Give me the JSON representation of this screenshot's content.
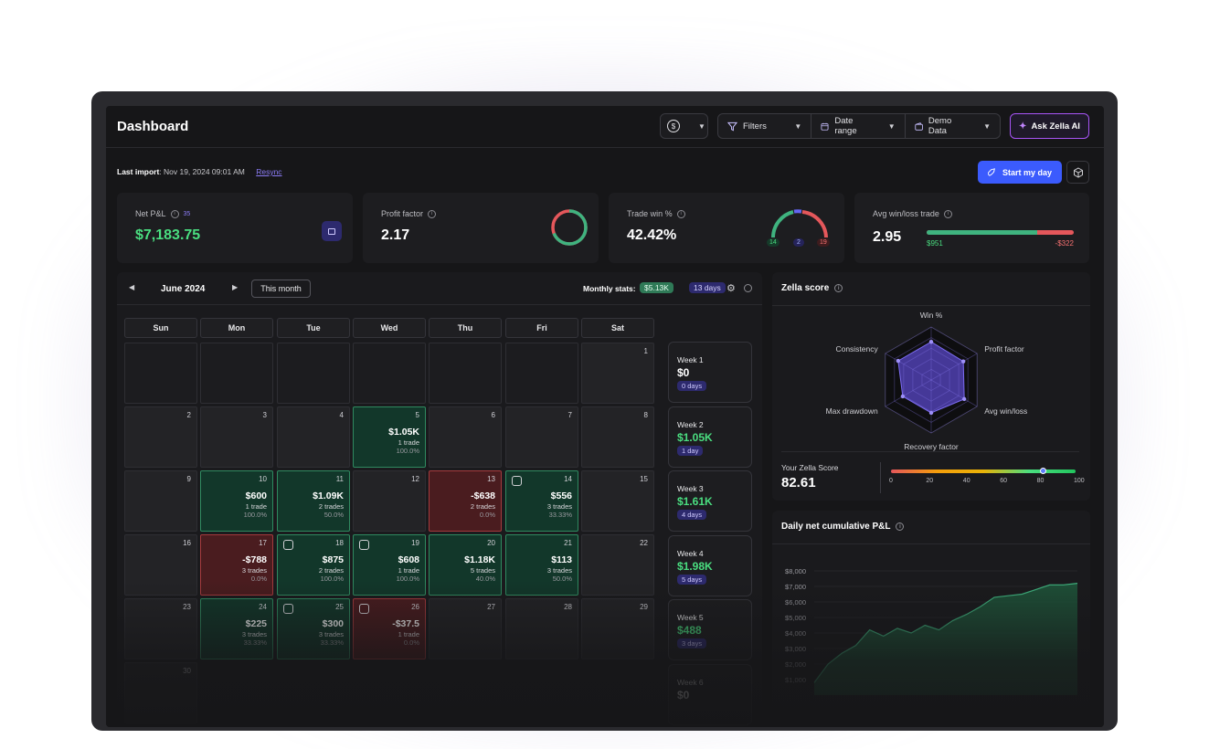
{
  "header": {
    "title": "Dashboard",
    "currency_icon": "dollar-icon",
    "filters_label": "Filters",
    "date_range_label": "Date range",
    "account_label": "Demo Data",
    "ai_label": "Ask Zella AI"
  },
  "import": {
    "label": "Last import",
    "value": ": Nov 19, 2024 09:01 AM",
    "resync": "Resync"
  },
  "actions": {
    "start_label": "Start my day"
  },
  "stats": {
    "net_pnl": {
      "label": "Net P&L",
      "count": "35",
      "value": "$7,183.75"
    },
    "profit_factor": {
      "label": "Profit factor",
      "value": "2.17"
    },
    "trade_win": {
      "label": "Trade win %",
      "value": "42.42%",
      "wins": "14",
      "breakeven": "2",
      "losses": "19"
    },
    "avg_win_loss": {
      "label": "Avg win/loss trade",
      "value": "2.95",
      "avg_win": "$951",
      "avg_loss": "-$322",
      "win_fraction": 0.75
    }
  },
  "calendar": {
    "month": "June 2024",
    "this_month": "This month",
    "monthly_stats_label": "Monthly stats:",
    "monthly_pnl": "$5.13K",
    "monthly_days": "13 days",
    "weekdays": [
      "Sun",
      "Mon",
      "Tue",
      "Wed",
      "Thu",
      "Fri",
      "Sat"
    ],
    "days": [
      {
        "n": "1",
        "r": 0,
        "c": 6
      },
      {
        "n": "2",
        "r": 1,
        "c": 0
      },
      {
        "n": "3",
        "r": 1,
        "c": 1
      },
      {
        "n": "4",
        "r": 1,
        "c": 2
      },
      {
        "n": "5",
        "r": 1,
        "c": 3,
        "pnl": "$1.05K",
        "trades": "1 trade",
        "pct": "100.0%",
        "type": "green"
      },
      {
        "n": "6",
        "r": 1,
        "c": 4
      },
      {
        "n": "7",
        "r": 1,
        "c": 5
      },
      {
        "n": "8",
        "r": 1,
        "c": 6
      },
      {
        "n": "9",
        "r": 2,
        "c": 0
      },
      {
        "n": "10",
        "r": 2,
        "c": 1,
        "pnl": "$600",
        "trades": "1 trade",
        "pct": "100.0%",
        "type": "green"
      },
      {
        "n": "11",
        "r": 2,
        "c": 2,
        "pnl": "$1.09K",
        "trades": "2 trades",
        "pct": "50.0%",
        "type": "green"
      },
      {
        "n": "12",
        "r": 2,
        "c": 3
      },
      {
        "n": "13",
        "r": 2,
        "c": 4,
        "pnl": "-$638",
        "trades": "2 trades",
        "pct": "0.0%",
        "type": "red"
      },
      {
        "n": "14",
        "r": 2,
        "c": 5,
        "pnl": "$556",
        "trades": "3 trades",
        "pct": "33.33%",
        "type": "green",
        "note": true
      },
      {
        "n": "15",
        "r": 2,
        "c": 6
      },
      {
        "n": "16",
        "r": 3,
        "c": 0
      },
      {
        "n": "17",
        "r": 3,
        "c": 1,
        "pnl": "-$788",
        "trades": "3 trades",
        "pct": "0.0%",
        "type": "red"
      },
      {
        "n": "18",
        "r": 3,
        "c": 2,
        "pnl": "$875",
        "trades": "2 trades",
        "pct": "100.0%",
        "type": "green",
        "note": true
      },
      {
        "n": "19",
        "r": 3,
        "c": 3,
        "pnl": "$608",
        "trades": "1 trade",
        "pct": "100.0%",
        "type": "green",
        "note": true
      },
      {
        "n": "20",
        "r": 3,
        "c": 4,
        "pnl": "$1.18K",
        "trades": "5 trades",
        "pct": "40.0%",
        "type": "green"
      },
      {
        "n": "21",
        "r": 3,
        "c": 5,
        "pnl": "$113",
        "trades": "3 trades",
        "pct": "50.0%",
        "type": "green"
      },
      {
        "n": "22",
        "r": 3,
        "c": 6
      },
      {
        "n": "23",
        "r": 4,
        "c": 0
      },
      {
        "n": "24",
        "r": 4,
        "c": 1,
        "pnl": "$225",
        "trades": "3 trades",
        "pct": "33.33%",
        "type": "green"
      },
      {
        "n": "25",
        "r": 4,
        "c": 2,
        "pnl": "$300",
        "trades": "3 trades",
        "pct": "33.33%",
        "type": "green",
        "note": true
      },
      {
        "n": "26",
        "r": 4,
        "c": 3,
        "pnl": "-$37.5",
        "trades": "1 trade",
        "pct": "0.0%",
        "type": "red",
        "note": true
      },
      {
        "n": "27",
        "r": 4,
        "c": 4
      },
      {
        "n": "28",
        "r": 4,
        "c": 5
      },
      {
        "n": "29",
        "r": 4,
        "c": 6
      },
      {
        "n": "30",
        "r": 5,
        "c": 0
      }
    ],
    "weeks": [
      {
        "label": "Week 1",
        "value": "$0",
        "days": "0 days",
        "color": "#ffffff"
      },
      {
        "label": "Week 2",
        "value": "$1.05K",
        "days": "1 day",
        "color": "#4ade80"
      },
      {
        "label": "Week 3",
        "value": "$1.61K",
        "days": "4 days",
        "color": "#4ade80"
      },
      {
        "label": "Week 4",
        "value": "$1.98K",
        "days": "5 days",
        "color": "#4ade80"
      },
      {
        "label": "Week 5",
        "value": "$488",
        "days": "3 days",
        "color": "#4ade80"
      },
      {
        "label": "Week 6",
        "value": "$0",
        "days": "",
        "color": "#ffffff"
      }
    ]
  },
  "zella": {
    "title": "Zella score",
    "axes": [
      "Win %",
      "Profit factor",
      "Avg win/loss",
      "Recovery factor",
      "Max drawdown",
      "Consistency"
    ],
    "values": [
      0.72,
      0.7,
      0.72,
      0.62,
      0.62,
      0.72
    ],
    "score_label": "Your Zella Score",
    "score": "82.61",
    "score_value": 82.61,
    "scale": [
      "0",
      "20",
      "40",
      "60",
      "80",
      "100"
    ]
  },
  "cumulative": {
    "title": "Daily net cumulative P&L",
    "chart_data": {
      "type": "area",
      "yticks": [
        "$8,000",
        "$7,000",
        "$6,000",
        "$5,000",
        "$4,000",
        "$3,000",
        "$2,000",
        "$1,000"
      ],
      "ylim": [
        0,
        8000
      ],
      "values": [
        800,
        2000,
        2700,
        3200,
        4200,
        3800,
        4300,
        4000,
        4500,
        4200,
        4800,
        5200,
        5700,
        6300,
        6400,
        6500,
        6800,
        7100,
        7100,
        7200
      ]
    }
  }
}
